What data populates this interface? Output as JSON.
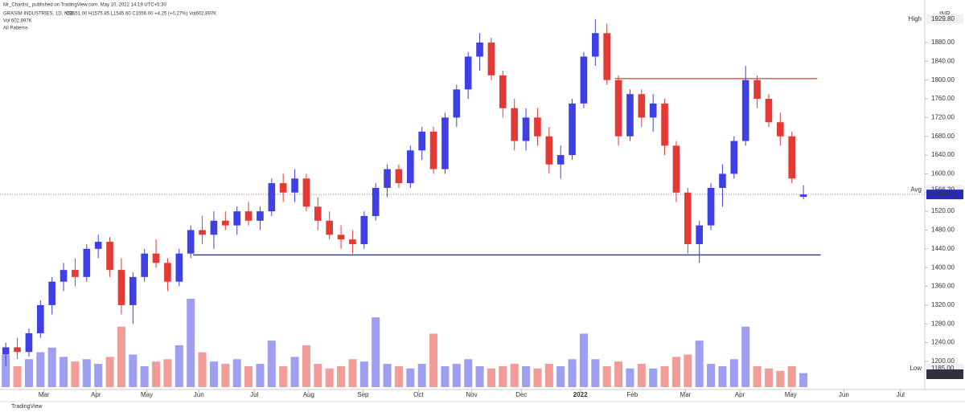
{
  "chart_data": {
    "type": "candlestick",
    "attribution": "Mr_Chartist_ published on TradingView.com, May 10, 2022 14:19 UTC+5:30",
    "title": "GRASIM INDUSTRIES, 1D, NSE",
    "ohlc_text": "O1551.00 H1575.85 L1545.60 C1556.00 +4.25 (+0.27%) Vol602.897K",
    "volume_text": "Vol 602.897K",
    "indicator_text": "All Patterns",
    "currency": "INR",
    "footer": "TradingView",
    "up_color": "#3f3fe6",
    "down_color": "#e53935",
    "ylim": [
      1140,
      1957
    ],
    "xlim": [
      0,
      80
    ],
    "yticks": [
      {
        "value": 1200,
        "label": "1200.00"
      },
      {
        "value": 1240,
        "label": "1240.00"
      },
      {
        "value": 1280,
        "label": "1280.00"
      },
      {
        "value": 1320,
        "label": "1320.00"
      },
      {
        "value": 1360,
        "label": "1360.00"
      },
      {
        "value": 1400,
        "label": "1400.00"
      },
      {
        "value": 1440,
        "label": "1440.00"
      },
      {
        "value": 1480,
        "label": "1480.00"
      },
      {
        "value": 1520,
        "label": "1520.00"
      },
      {
        "value": 1560,
        "label": "1560.00"
      },
      {
        "value": 1600,
        "label": "1600.00"
      },
      {
        "value": 1640,
        "label": "1640.00"
      },
      {
        "value": 1680,
        "label": "1680.00"
      },
      {
        "value": 1720,
        "label": "1720.00"
      },
      {
        "value": 1760,
        "label": "1760.00"
      },
      {
        "value": 1800,
        "label": "1800.00"
      },
      {
        "value": 1840,
        "label": "1840.00"
      },
      {
        "value": 1880,
        "label": "1880.00"
      }
    ],
    "xticks": [
      {
        "value": 3.8,
        "label": "Mar"
      },
      {
        "value": 8.3,
        "label": "Apr"
      },
      {
        "value": 12.7,
        "label": "May"
      },
      {
        "value": 17.2,
        "label": "Jun"
      },
      {
        "value": 22.0,
        "label": "Jul"
      },
      {
        "value": 26.7,
        "label": "Aug"
      },
      {
        "value": 31.4,
        "label": "Sep"
      },
      {
        "value": 36.2,
        "label": "Oct"
      },
      {
        "value": 40.8,
        "label": "Nov"
      },
      {
        "value": 45.1,
        "label": "Dec"
      },
      {
        "value": 50.2,
        "label": "2022"
      },
      {
        "value": 54.7,
        "label": "Feb"
      },
      {
        "value": 59.3,
        "label": "Mar"
      },
      {
        "value": 64.0,
        "label": "Apr"
      },
      {
        "value": 68.4,
        "label": "May"
      },
      {
        "value": 73.0,
        "label": "Jun"
      },
      {
        "value": 77.9,
        "label": "Jul"
      }
    ],
    "ohlc": [
      [
        1215,
        1240,
        1190,
        1230
      ],
      [
        1230,
        1250,
        1205,
        1220
      ],
      [
        1220,
        1270,
        1210,
        1260
      ],
      [
        1260,
        1330,
        1250,
        1320
      ],
      [
        1320,
        1380,
        1300,
        1370
      ],
      [
        1370,
        1410,
        1350,
        1395
      ],
      [
        1395,
        1420,
        1360,
        1380
      ],
      [
        1380,
        1450,
        1370,
        1440
      ],
      [
        1440,
        1470,
        1420,
        1455
      ],
      [
        1455,
        1465,
        1380,
        1395
      ],
      [
        1395,
        1420,
        1300,
        1320
      ],
      [
        1320,
        1390,
        1280,
        1380
      ],
      [
        1380,
        1440,
        1370,
        1430
      ],
      [
        1430,
        1460,
        1400,
        1410
      ],
      [
        1410,
        1420,
        1350,
        1370
      ],
      [
        1370,
        1440,
        1360,
        1430
      ],
      [
        1430,
        1490,
        1420,
        1480
      ],
      [
        1480,
        1510,
        1450,
        1470
      ],
      [
        1470,
        1520,
        1440,
        1500
      ],
      [
        1500,
        1520,
        1480,
        1490
      ],
      [
        1490,
        1530,
        1470,
        1520
      ],
      [
        1520,
        1540,
        1490,
        1500
      ],
      [
        1500,
        1530,
        1480,
        1520
      ],
      [
        1520,
        1590,
        1510,
        1580
      ],
      [
        1580,
        1600,
        1540,
        1560
      ],
      [
        1560,
        1610,
        1540,
        1590
      ],
      [
        1590,
        1600,
        1520,
        1530
      ],
      [
        1530,
        1550,
        1480,
        1500
      ],
      [
        1500,
        1520,
        1460,
        1470
      ],
      [
        1470,
        1490,
        1440,
        1460
      ],
      [
        1460,
        1480,
        1430,
        1450
      ],
      [
        1450,
        1520,
        1440,
        1510
      ],
      [
        1510,
        1580,
        1500,
        1570
      ],
      [
        1570,
        1620,
        1550,
        1610
      ],
      [
        1610,
        1620,
        1570,
        1580
      ],
      [
        1580,
        1660,
        1570,
        1650
      ],
      [
        1650,
        1700,
        1630,
        1690
      ],
      [
        1690,
        1700,
        1600,
        1610
      ],
      [
        1610,
        1730,
        1600,
        1720
      ],
      [
        1720,
        1790,
        1700,
        1780
      ],
      [
        1780,
        1860,
        1760,
        1850
      ],
      [
        1850,
        1900,
        1820,
        1880
      ],
      [
        1880,
        1890,
        1800,
        1810
      ],
      [
        1810,
        1820,
        1720,
        1740
      ],
      [
        1740,
        1760,
        1650,
        1670
      ],
      [
        1670,
        1740,
        1650,
        1720
      ],
      [
        1720,
        1740,
        1660,
        1680
      ],
      [
        1680,
        1700,
        1600,
        1620
      ],
      [
        1620,
        1660,
        1590,
        1640
      ],
      [
        1640,
        1760,
        1630,
        1750
      ],
      [
        1750,
        1860,
        1740,
        1850
      ],
      [
        1850,
        1930,
        1830,
        1900
      ],
      [
        1900,
        1920,
        1790,
        1800
      ],
      [
        1800,
        1810,
        1660,
        1680
      ],
      [
        1680,
        1780,
        1670,
        1770
      ],
      [
        1770,
        1780,
        1700,
        1720
      ],
      [
        1720,
        1770,
        1690,
        1750
      ],
      [
        1750,
        1760,
        1640,
        1660
      ],
      [
        1660,
        1670,
        1540,
        1560
      ],
      [
        1560,
        1570,
        1430,
        1450
      ],
      [
        1450,
        1500,
        1410,
        1490
      ],
      [
        1490,
        1580,
        1480,
        1570
      ],
      [
        1570,
        1620,
        1530,
        1600
      ],
      [
        1600,
        1680,
        1590,
        1670
      ],
      [
        1670,
        1830,
        1660,
        1800
      ],
      [
        1800,
        1810,
        1740,
        1760
      ],
      [
        1760,
        1770,
        1700,
        1710
      ],
      [
        1710,
        1730,
        1660,
        1680
      ],
      [
        1680,
        1690,
        1580,
        1590
      ],
      [
        1551,
        1575.85,
        1545.6,
        1556
      ]
    ],
    "volume": [
      1400,
      900,
      1200,
      1500,
      1700,
      1300,
      1100,
      1200,
      1000,
      1300,
      2600,
      1400,
      900,
      1100,
      1200,
      1800,
      3800,
      1500,
      1100,
      1000,
      1200,
      900,
      1000,
      2000,
      900,
      1300,
      1800,
      1000,
      800,
      900,
      1200,
      1100,
      3000,
      1000,
      900,
      800,
      1000,
      2300,
      900,
      1000,
      1200,
      900,
      800,
      900,
      1000,
      900,
      800,
      1000,
      900,
      1200,
      2300,
      1200,
      900,
      1100,
      800,
      1000,
      800,
      900,
      1300,
      1400,
      2000,
      1000,
      900,
      1200,
      2600,
      900,
      800,
      700,
      900,
      602.897
    ],
    "volume_label": "602.897K",
    "lines": [
      {
        "value": 1803,
        "color": "#e53935",
        "x": [
          53.2,
          70.7
        ]
      },
      {
        "value": 1427,
        "color": "#2a2ab8",
        "x": [
          16.7,
          71.0
        ]
      }
    ],
    "price_labels": [
      {
        "name": "High",
        "value": 1929.8,
        "value_label": "1929.80"
      },
      {
        "name": "Avg",
        "value": 1566.2,
        "value_label": "1566.20"
      },
      {
        "name": "Low",
        "value": 1185,
        "value_label": "1185.00"
      }
    ],
    "last_price": {
      "value": 1556,
      "value_label": "1556.00"
    }
  }
}
